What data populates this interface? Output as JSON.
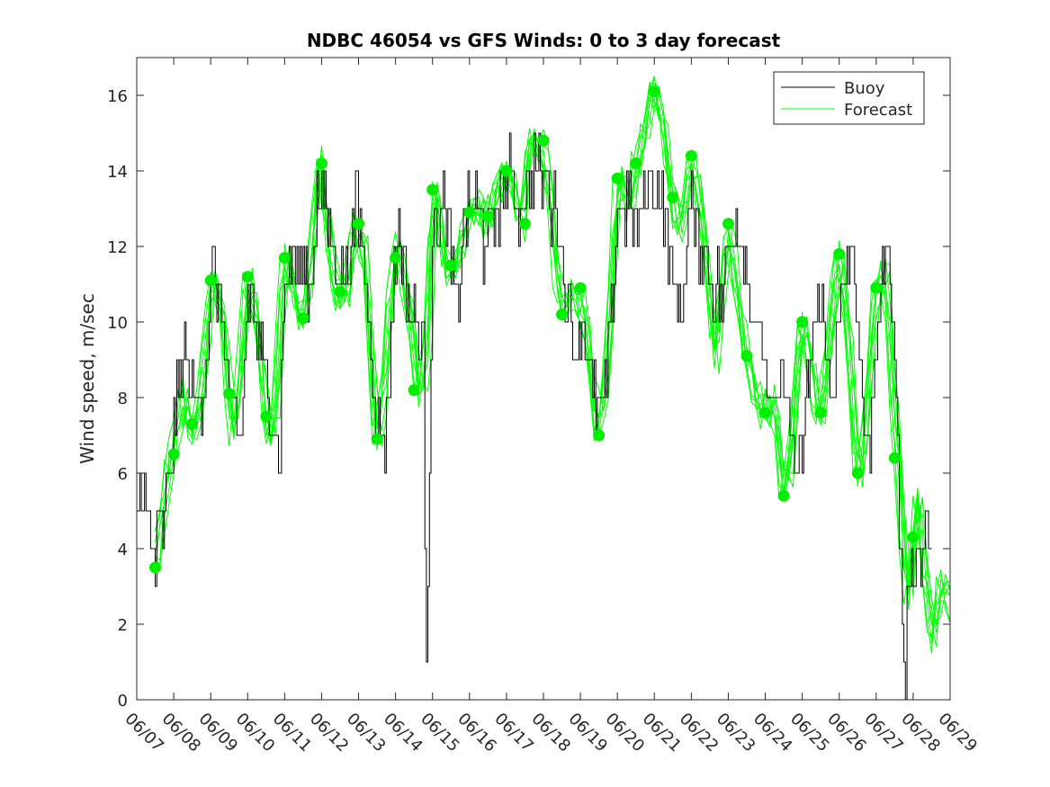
{
  "chart_data": {
    "type": "line",
    "title": "NDBC 46054 vs GFS Winds: 0 to 3 day forecast",
    "xlabel": "",
    "ylabel": "Wind speed, m/sec",
    "x_tick_labels": [
      "06/07",
      "06/08",
      "06/09",
      "06/10",
      "06/11",
      "06/12",
      "06/13",
      "06/14",
      "06/15",
      "06/16",
      "06/17",
      "06/18",
      "06/19",
      "06/20",
      "06/21",
      "06/22",
      "06/23",
      "06/24",
      "06/25",
      "06/26",
      "06/27",
      "06/28",
      "06/29"
    ],
    "xlim_days": [
      0,
      22
    ],
    "ylim": [
      0,
      17
    ],
    "y_ticks": [
      0,
      2,
      4,
      6,
      8,
      10,
      12,
      14,
      16
    ],
    "grid": false,
    "legend": {
      "placement": "top-right",
      "entries": [
        "Buoy",
        "Forecast"
      ]
    },
    "colors": {
      "buoy": "#000000",
      "forecast": "#00ff00",
      "dots": "#00ee00"
    },
    "series": [
      {
        "name": "Buoy",
        "color": "#000000",
        "anchors": [
          [
            0,
            5
          ],
          [
            0.12,
            6
          ],
          [
            0.25,
            5
          ],
          [
            0.4,
            4
          ],
          [
            0.5,
            3.5
          ],
          [
            0.6,
            4.5
          ],
          [
            0.75,
            4.5
          ],
          [
            0.85,
            6
          ],
          [
            1.0,
            7
          ],
          [
            1.1,
            8
          ],
          [
            1.2,
            9
          ],
          [
            1.3,
            9
          ],
          [
            1.5,
            8
          ],
          [
            1.7,
            8
          ],
          [
            1.8,
            8
          ],
          [
            2.0,
            11
          ],
          [
            2.15,
            11
          ],
          [
            2.3,
            10
          ],
          [
            2.4,
            9
          ],
          [
            2.6,
            7.5
          ],
          [
            2.75,
            6.5
          ],
          [
            2.85,
            7
          ],
          [
            3.0,
            11
          ],
          [
            3.2,
            10
          ],
          [
            3.4,
            9
          ],
          [
            3.6,
            8
          ],
          [
            3.75,
            7
          ],
          [
            3.85,
            6
          ],
          [
            4.0,
            11
          ],
          [
            4.2,
            12
          ],
          [
            4.35,
            11.5
          ],
          [
            4.5,
            12
          ],
          [
            4.65,
            11
          ],
          [
            4.8,
            12
          ],
          [
            4.9,
            13.5
          ],
          [
            5.05,
            13
          ],
          [
            5.2,
            12.5
          ],
          [
            5.35,
            11.5
          ],
          [
            5.5,
            11.5
          ],
          [
            5.65,
            11
          ],
          [
            5.8,
            12.5
          ],
          [
            5.95,
            13
          ],
          [
            6.1,
            12
          ],
          [
            6.3,
            10
          ],
          [
            6.45,
            8
          ],
          [
            6.55,
            7
          ],
          [
            6.7,
            7
          ],
          [
            6.8,
            8
          ],
          [
            6.95,
            11
          ],
          [
            7.1,
            12.5
          ],
          [
            7.3,
            11
          ],
          [
            7.45,
            10
          ],
          [
            7.6,
            10
          ],
          [
            7.75,
            9
          ],
          [
            7.8,
            4
          ],
          [
            7.85,
            1
          ],
          [
            7.9,
            6
          ],
          [
            8.0,
            12
          ],
          [
            8.15,
            13
          ],
          [
            8.3,
            13
          ],
          [
            8.45,
            12
          ],
          [
            8.55,
            11
          ],
          [
            8.65,
            10
          ],
          [
            8.8,
            12.5
          ],
          [
            9.0,
            13
          ],
          [
            9.2,
            13
          ],
          [
            9.4,
            12
          ],
          [
            9.6,
            12.5
          ],
          [
            9.8,
            13
          ],
          [
            10.0,
            14
          ],
          [
            10.2,
            13.5
          ],
          [
            10.4,
            13
          ],
          [
            10.6,
            14
          ],
          [
            10.8,
            14
          ],
          [
            11.0,
            14
          ],
          [
            11.2,
            13
          ],
          [
            11.4,
            13
          ],
          [
            11.55,
            11
          ],
          [
            11.7,
            10
          ],
          [
            11.85,
            9.5
          ],
          [
            12.0,
            10
          ],
          [
            12.15,
            9.5
          ],
          [
            12.35,
            8
          ],
          [
            12.5,
            7.5
          ],
          [
            12.65,
            8
          ],
          [
            12.8,
            10
          ],
          [
            13.0,
            13
          ],
          [
            13.2,
            13
          ],
          [
            13.4,
            13
          ],
          [
            13.55,
            12
          ],
          [
            13.75,
            13.5
          ],
          [
            14.0,
            14
          ],
          [
            14.2,
            13
          ],
          [
            14.4,
            12
          ],
          [
            14.55,
            11
          ],
          [
            14.7,
            10
          ],
          [
            14.85,
            12
          ],
          [
            15.0,
            13
          ],
          [
            15.2,
            12
          ],
          [
            15.4,
            12
          ],
          [
            15.55,
            11
          ],
          [
            15.7,
            11
          ],
          [
            15.85,
            10.5
          ],
          [
            16.0,
            12
          ],
          [
            16.2,
            13
          ],
          [
            16.4,
            12
          ],
          [
            16.55,
            11
          ],
          [
            16.75,
            10
          ],
          [
            16.95,
            9
          ],
          [
            17.05,
            8
          ],
          [
            17.2,
            7.5
          ],
          [
            17.35,
            8
          ],
          [
            17.5,
            9
          ],
          [
            17.7,
            7
          ],
          [
            17.85,
            5.5
          ],
          [
            18.0,
            6.5
          ],
          [
            18.2,
            9
          ],
          [
            18.4,
            10
          ],
          [
            18.5,
            11
          ],
          [
            18.65,
            9
          ],
          [
            18.8,
            8
          ],
          [
            19.0,
            10
          ],
          [
            19.15,
            11
          ],
          [
            19.3,
            12
          ],
          [
            19.5,
            10
          ],
          [
            19.65,
            7
          ],
          [
            19.8,
            6
          ],
          [
            19.9,
            8
          ],
          [
            20.05,
            10
          ],
          [
            20.2,
            11
          ],
          [
            20.35,
            12
          ],
          [
            20.5,
            9
          ],
          [
            20.6,
            6
          ],
          [
            20.7,
            2
          ],
          [
            20.78,
            0
          ],
          [
            20.85,
            3
          ],
          [
            21.0,
            4
          ],
          [
            21.2,
            3.5
          ],
          [
            21.35,
            4.5
          ],
          [
            21.5,
            4
          ]
        ]
      },
      {
        "name": "Forecast",
        "color": "#00ff00",
        "anchors": [
          [
            0.5,
            3.5
          ],
          [
            0.7,
            5
          ],
          [
            0.85,
            6
          ],
          [
            1.0,
            6.5
          ],
          [
            1.15,
            7.5
          ],
          [
            1.25,
            8.2
          ],
          [
            1.35,
            7.5
          ],
          [
            1.5,
            7.3
          ],
          [
            1.65,
            7.2
          ],
          [
            1.8,
            8.5
          ],
          [
            2.0,
            11
          ],
          [
            2.2,
            11
          ],
          [
            2.35,
            10
          ],
          [
            2.5,
            8
          ],
          [
            2.6,
            7
          ],
          [
            2.75,
            8
          ],
          [
            3.0,
            11.2
          ],
          [
            3.2,
            10.5
          ],
          [
            3.4,
            9
          ],
          [
            3.5,
            7.5
          ],
          [
            3.6,
            7
          ],
          [
            3.75,
            7.5
          ],
          [
            4.0,
            11.7
          ],
          [
            4.15,
            11.5
          ],
          [
            4.3,
            10.5
          ],
          [
            4.5,
            10.1
          ],
          [
            4.65,
            11
          ],
          [
            4.8,
            12.5
          ],
          [
            4.95,
            14.2
          ],
          [
            5.15,
            12.5
          ],
          [
            5.35,
            11
          ],
          [
            5.5,
            10.7
          ],
          [
            5.7,
            11
          ],
          [
            5.85,
            12
          ],
          [
            6.0,
            12.6
          ],
          [
            6.2,
            11.5
          ],
          [
            6.35,
            9
          ],
          [
            6.5,
            6.9
          ],
          [
            6.65,
            8
          ],
          [
            6.8,
            10
          ],
          [
            7.0,
            12
          ],
          [
            7.15,
            11.7
          ],
          [
            7.3,
            10.5
          ],
          [
            7.45,
            10
          ],
          [
            7.6,
            8.2
          ],
          [
            7.75,
            8.5
          ],
          [
            7.9,
            10
          ],
          [
            8.0,
            13.4
          ],
          [
            8.15,
            13
          ],
          [
            8.3,
            12
          ],
          [
            8.45,
            11.5
          ],
          [
            8.6,
            11.5
          ],
          [
            8.75,
            12
          ],
          [
            9.0,
            12.8
          ],
          [
            9.2,
            13
          ],
          [
            9.4,
            12.7
          ],
          [
            9.6,
            13
          ],
          [
            9.8,
            13.5
          ],
          [
            10.0,
            14
          ],
          [
            10.2,
            13.5
          ],
          [
            10.4,
            12.6
          ],
          [
            10.6,
            14.3
          ],
          [
            10.8,
            14.8
          ],
          [
            11.0,
            14.5
          ],
          [
            11.2,
            13
          ],
          [
            11.4,
            11
          ],
          [
            11.5,
            10.2
          ],
          [
            11.65,
            10.5
          ],
          [
            11.85,
            10.8
          ],
          [
            12.0,
            10.5
          ],
          [
            12.2,
            9.5
          ],
          [
            12.35,
            8
          ],
          [
            12.5,
            7
          ],
          [
            12.65,
            8
          ],
          [
            12.85,
            10.5
          ],
          [
            13.0,
            13.8
          ],
          [
            13.2,
            13.5
          ],
          [
            13.35,
            13
          ],
          [
            13.5,
            14.2
          ],
          [
            13.7,
            15
          ],
          [
            14.0,
            16.1
          ],
          [
            14.2,
            15.5
          ],
          [
            14.35,
            14.5
          ],
          [
            14.5,
            13.3
          ],
          [
            14.65,
            12.5
          ],
          [
            14.8,
            13
          ],
          [
            15.0,
            14.4
          ],
          [
            15.2,
            13.5
          ],
          [
            15.35,
            12
          ],
          [
            15.5,
            10.5
          ],
          [
            15.65,
            9
          ],
          [
            15.8,
            10.5
          ],
          [
            16.0,
            12.6
          ],
          [
            16.2,
            11
          ],
          [
            16.35,
            10
          ],
          [
            16.5,
            9
          ],
          [
            16.65,
            8.2
          ],
          [
            16.8,
            7.8
          ],
          [
            17.0,
            7.6
          ],
          [
            17.15,
            8
          ],
          [
            17.3,
            7.5
          ],
          [
            17.5,
            5.4
          ],
          [
            17.65,
            6
          ],
          [
            17.8,
            8
          ],
          [
            18.0,
            10
          ],
          [
            18.2,
            9
          ],
          [
            18.35,
            8
          ],
          [
            18.5,
            7.6
          ],
          [
            18.7,
            9
          ],
          [
            18.85,
            10.5
          ],
          [
            19.0,
            11.8
          ],
          [
            19.2,
            10
          ],
          [
            19.35,
            8
          ],
          [
            19.5,
            6
          ],
          [
            19.65,
            6.5
          ],
          [
            19.85,
            9
          ],
          [
            20.0,
            10.8
          ],
          [
            20.15,
            11.5
          ],
          [
            20.3,
            11
          ],
          [
            20.45,
            8
          ],
          [
            20.6,
            6.4
          ],
          [
            20.75,
            4
          ],
          [
            20.9,
            2.5
          ],
          [
            21.0,
            4.2
          ],
          [
            21.15,
            5.5
          ],
          [
            21.25,
            4
          ],
          [
            21.4,
            2.5
          ],
          [
            21.55,
            1.5
          ],
          [
            21.7,
            2.8
          ],
          [
            21.85,
            3
          ],
          [
            22.0,
            2.5
          ]
        ]
      }
    ],
    "forecast_points": [
      [
        0.5,
        3.5
      ],
      [
        1.0,
        6.5
      ],
      [
        1.5,
        7.3
      ],
      [
        2.0,
        11.1
      ],
      [
        2.5,
        8.1
      ],
      [
        3.0,
        11.2
      ],
      [
        3.5,
        7.5
      ],
      [
        4.0,
        11.7
      ],
      [
        4.5,
        10.1
      ],
      [
        5.0,
        14.2
      ],
      [
        5.5,
        10.8
      ],
      [
        6.0,
        12.6
      ],
      [
        6.5,
        6.9
      ],
      [
        7.0,
        11.7
      ],
      [
        7.5,
        8.2
      ],
      [
        8.0,
        13.5
      ],
      [
        8.5,
        11.5
      ],
      [
        9.0,
        12.9
      ],
      [
        9.5,
        12.8
      ],
      [
        10.0,
        14.0
      ],
      [
        10.5,
        12.6
      ],
      [
        11.0,
        14.8
      ],
      [
        11.5,
        10.2
      ],
      [
        12.0,
        10.9
      ],
      [
        12.5,
        7.0
      ],
      [
        13.0,
        13.8
      ],
      [
        13.5,
        14.2
      ],
      [
        14.0,
        16.1
      ],
      [
        14.5,
        13.3
      ],
      [
        15.0,
        14.4
      ],
      [
        16.0,
        12.6
      ],
      [
        16.5,
        9.1
      ],
      [
        17.0,
        7.6
      ],
      [
        17.5,
        5.4
      ],
      [
        18.0,
        10.0
      ],
      [
        18.5,
        7.6
      ],
      [
        19.0,
        11.8
      ],
      [
        19.5,
        6.0
      ],
      [
        20.0,
        10.9
      ],
      [
        20.5,
        6.4
      ],
      [
        21.0,
        4.3
      ]
    ]
  }
}
